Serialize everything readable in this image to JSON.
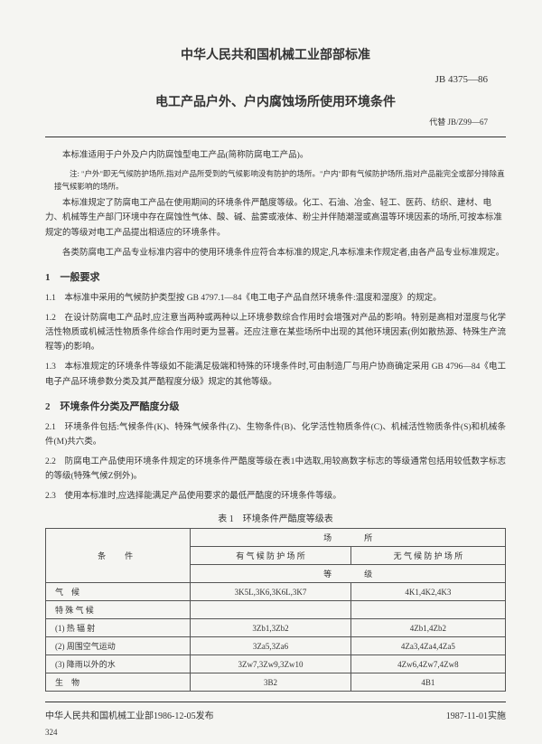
{
  "header": {
    "org": "中华人民共和国机械工业部部标准",
    "code": "JB 4375—86",
    "title": "电工产品户外、户内腐蚀场所使用环境条件",
    "replace": "代替 JB/Z99—67"
  },
  "intro": {
    "p1": "本标准适用于户外及户内防腐蚀型电工产品(简称防腐电工产品)。",
    "note": "注: \"户外\"即无气候防护场所,指对产品所受到的气候影响没有防护的场所。\"户内\"即有气候防护场所,指对产品能完全或部分排除直接气候影响的场所。",
    "p2": "本标准规定了防腐电工产品在使用期间的环境条件严酷度等级。化工、石油、冶金、轻工、医药、纺织、建材、电力、机械等生产部门环境中存在腐蚀性气体、酸、碱、盐雾或液体、粉尘并伴随潮湿或高温等环境因素的场所,可按本标准规定的等级对电工产品提出相适应的环境条件。",
    "p3": "各类防腐电工产品专业标准内容中的使用环境条件应符合本标准的规定,凡本标准未作规定者,由各产品专业标准规定。"
  },
  "s1": {
    "heading": "1　一般要求",
    "c11": "1.1　本标准中采用的气候防护类型按 GB 4797.1—84《电工电子产品自然环境条件:温度和湿度》的规定。",
    "c12": "1.2　在设计防腐电工产品时,应注意当两种或两种以上环境参数综合作用时会增强对产品的影响。特别是高相对湿度与化学活性物质或机械活性物质条件综合作用时更为显著。还应注意在某些场所中出现的其他环境因素(例如散热源、特殊生产流程等)的影响。",
    "c13": "1.3　本标准规定的环境条件等级如不能满足极端和特殊的环境条件时,可由制造厂与用户协商确定采用 GB 4796—84《电工电子产品环境参数分类及其严酷程度分级》规定的其他等级。"
  },
  "s2": {
    "heading": "2　环境条件分类及严酷度分级",
    "c21": "2.1　环境条件包括:气候条件(K)、特殊气候条件(Z)、生物条件(B)、化学活性物质条件(C)、机械活性物质条件(S)和机械条件(M)共六类。",
    "c22": "2.2　防腐电工产品使用环境条件规定的环境条件严酷度等级在表1中选取,用较高数字标志的等级通常包括用较低数字标志的等级(特殊气候Z例外)。",
    "c23": "2.3　使用本标准时,应选择能满足产品使用要求的最低严酷度的环境条件等级。"
  },
  "table": {
    "caption": "表 1　环境条件严酷度等级表",
    "h_cond": "条　件",
    "h_place": "场　　　　所",
    "h_with": "有 气 候 防 护 场 所",
    "h_without": "无 气 候 防 护 场 所",
    "h_grade": "等　　　　级",
    "rows": [
      {
        "label": "气　候",
        "v1": "3K5L,3K6,3K6L,3K7",
        "v2": "4K1,4K2,4K3"
      },
      {
        "label": "特 殊 气 候",
        "v1": "",
        "v2": ""
      },
      {
        "label": "(1) 热 辐 射",
        "v1": "3Zb1,3Zb2",
        "v2": "4Zb1,4Zb2"
      },
      {
        "label": "(2) 周围空气运动",
        "v1": "3Za5,3Za6",
        "v2": "4Za3,4Za4,4Za5"
      },
      {
        "label": "(3) 降雨以外的水",
        "v1": "3Zw7,3Zw9,3Zw10",
        "v2": "4Zw6,4Zw7,4Zw8"
      },
      {
        "label": "生　物",
        "v1": "3B2",
        "v2": "4B1"
      }
    ]
  },
  "footer": {
    "issue": "中华人民共和国机械工业部1986-12-05发布",
    "impl": "1987-11-01实施",
    "page": "324"
  }
}
